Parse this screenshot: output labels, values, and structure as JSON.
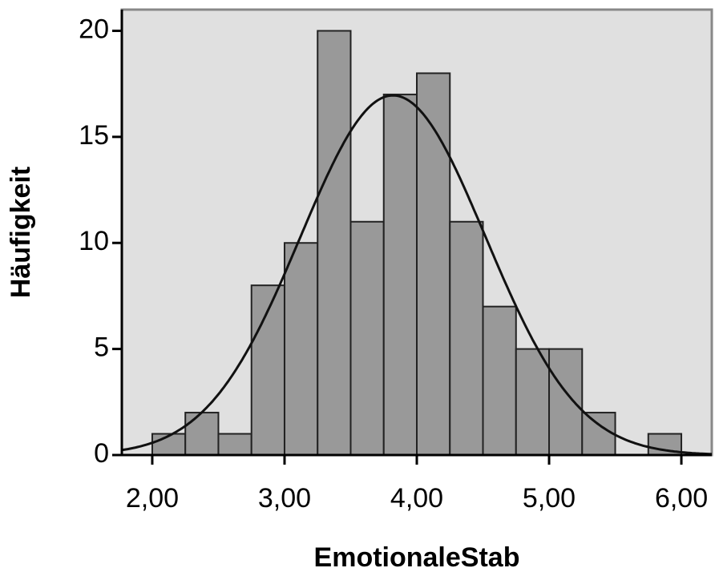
{
  "chart_data": {
    "type": "histogram",
    "xlabel": "EmotionaleStab",
    "ylabel": "Häufigkeit",
    "bins": [
      2.0,
      2.25,
      2.5,
      2.75,
      3.0,
      3.25,
      3.5,
      3.75,
      4.0,
      4.25,
      4.5,
      4.75,
      5.0,
      5.25,
      5.5,
      5.75,
      6.0
    ],
    "values": [
      1,
      2,
      1,
      8,
      10,
      20,
      11,
      17,
      18,
      11,
      7,
      5,
      5,
      2,
      0,
      1
    ],
    "color": "#999999",
    "curve": {
      "mean": 3.82,
      "sd": 0.7
    },
    "xlim": [
      1.77,
      6.23
    ],
    "ylim": [
      0,
      21
    ],
    "xticks": [
      {
        "value": 2,
        "label": "2,00"
      },
      {
        "value": 3,
        "label": "3,00"
      },
      {
        "value": 4,
        "label": "4,00"
      },
      {
        "value": 5,
        "label": "5,00"
      },
      {
        "value": 6,
        "label": "6,00"
      }
    ],
    "yticks": [
      0,
      5,
      10,
      15,
      20
    ]
  }
}
